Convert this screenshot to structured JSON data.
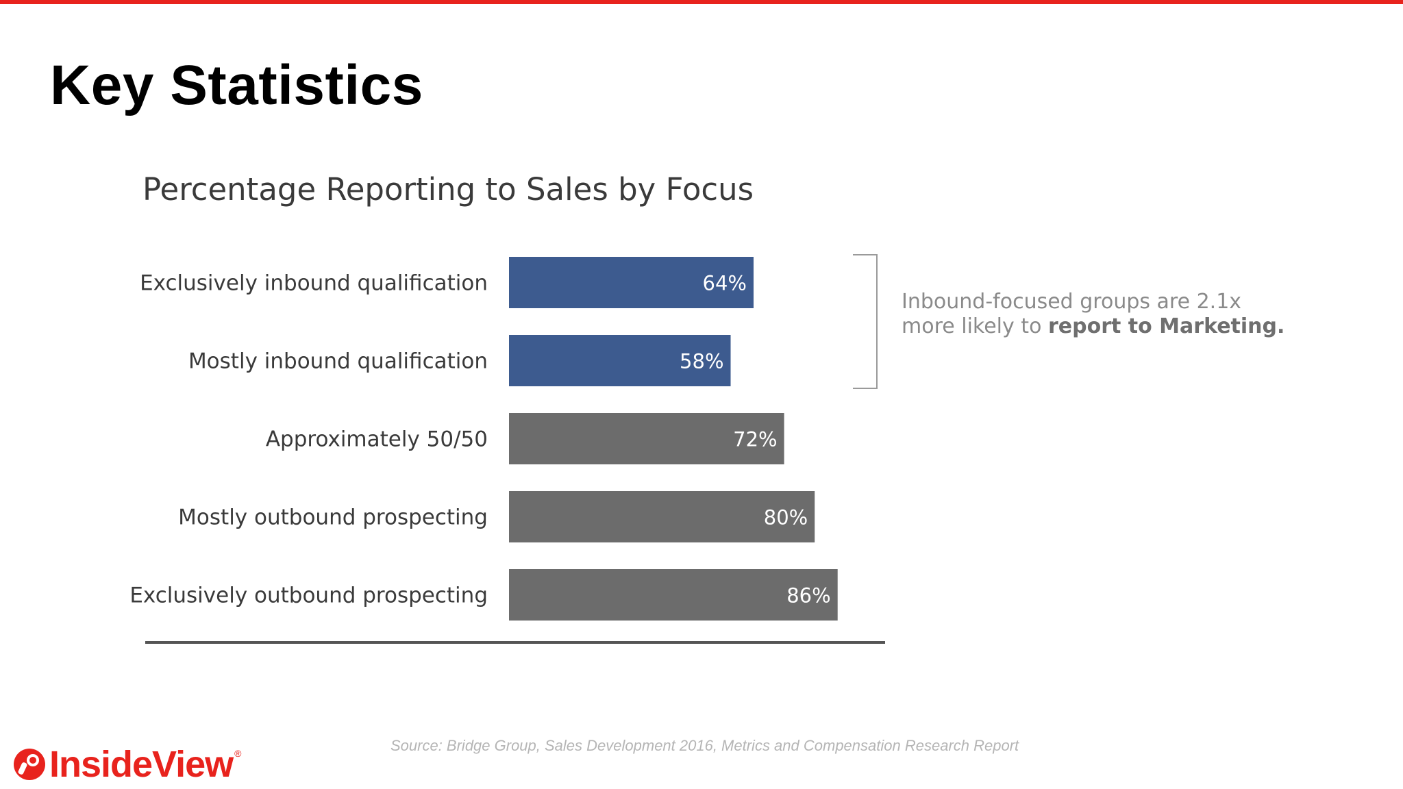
{
  "slide": {
    "title": "Key Statistics",
    "source": "Source: Bridge Group, Sales Development 2016, Metrics and Compensation Research Report",
    "logo_text": "InsideView",
    "logo_mark": "registered-trademark"
  },
  "callout": {
    "line1": "Inbound-focused groups are 2.1x",
    "line2_plain": "more likely to ",
    "line2_bold": "report to Marketing."
  },
  "colors": {
    "accent": "#e8231d",
    "inbound_bar": "#3d5b8f",
    "other_bar": "#6c6c6c"
  },
  "chart_data": {
    "type": "bar",
    "orientation": "horizontal",
    "title": "Percentage Reporting to Sales by Focus",
    "categories": [
      "Exclusively inbound qualification",
      "Mostly inbound qualification",
      "Approximately 50/50",
      "Mostly outbound prospecting",
      "Exclusively outbound prospecting"
    ],
    "values": [
      64,
      58,
      72,
      80,
      86
    ],
    "data_labels": [
      "64%",
      "58%",
      "72%",
      "80%",
      "86%"
    ],
    "bar_groups": [
      "inbound",
      "inbound",
      "other",
      "other",
      "other"
    ],
    "xlim": [
      0,
      100
    ],
    "grid": false,
    "legend": "none"
  }
}
